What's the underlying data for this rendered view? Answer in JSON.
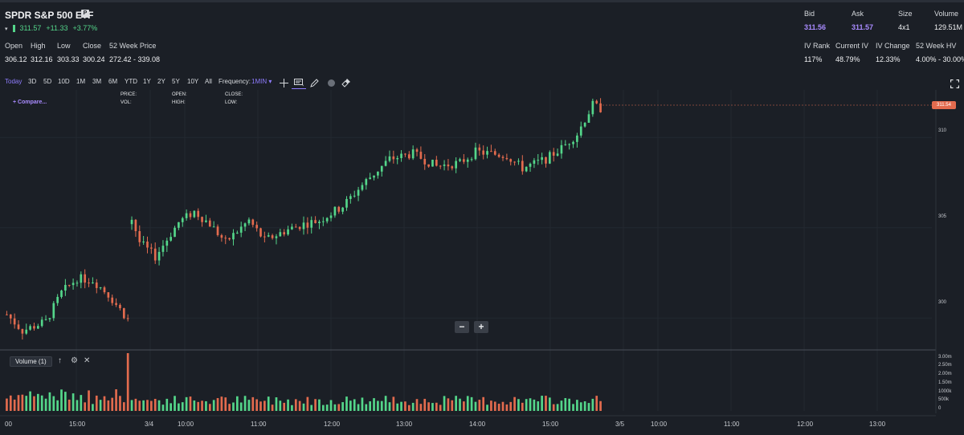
{
  "ticker": {
    "title": "SPDR S&P 500 ETF",
    "badge": "P",
    "caret": "▾",
    "last": "311.57",
    "change": "+11.33",
    "change_pct": "+3.77%"
  },
  "ohlc": {
    "headers": [
      "Open",
      "High",
      "Low",
      "Close",
      "52 Week Price"
    ],
    "values": [
      "306.12",
      "312.16",
      "303.33",
      "300.24",
      "272.42 - 339.08"
    ]
  },
  "quote": {
    "headers": [
      "Bid",
      "Ask",
      "Size",
      "Volume"
    ],
    "values": [
      "311.56",
      "311.57",
      "4x1",
      "129.51M"
    ]
  },
  "iv": {
    "headers": [
      "IV Rank",
      "Current IV",
      "IV Change",
      "52 Week HV"
    ],
    "values": [
      "117%",
      "48.79%",
      "12.33%",
      "4.00% - 30.00%"
    ]
  },
  "toolbar": {
    "ranges": [
      "Today",
      "3D",
      "5D",
      "10D",
      "1M",
      "3M",
      "6M",
      "YTD",
      "1Y",
      "2Y",
      "5Y",
      "10Y",
      "All"
    ],
    "active_range": "Today",
    "frequency_label": "Frequency:",
    "frequency_value": "1MIN",
    "tool_icons": [
      "crosshair-icon",
      "comment-icon",
      "pencil-icon",
      "circle-icon",
      "clear-drawings-icon"
    ]
  },
  "overlay": {
    "compare": "+ Compare...",
    "price_label": "PRICE:",
    "vol_label": "VOL:",
    "open_label": "OPEN:",
    "high_label": "HIGH:",
    "close_label": "CLOSE:",
    "low_label": "LOW:"
  },
  "zoom": {
    "minus": "−",
    "plus": "+"
  },
  "volume_panel": {
    "label": "Volume (1)",
    "up_icon": "↑",
    "gear_icon": "⚙",
    "close_icon": "✕"
  },
  "price_axis": {
    "labels": [
      "310",
      "305",
      "300"
    ],
    "current_tag": "311.54"
  },
  "volume_axis": {
    "labels": [
      "3.00m",
      "2.50m",
      "2.00m",
      "1.50m",
      "1000k",
      "500k",
      "0"
    ]
  },
  "time_axis": {
    "labels": [
      "00",
      "15:00",
      "3/4",
      "10:00",
      "11:00",
      "12:00",
      "13:00",
      "14:00",
      "15:00",
      "3/5",
      "10:00",
      "11:00",
      "12:00",
      "13:00"
    ]
  },
  "colors": {
    "up": "#54d68a",
    "down": "#e36b4e",
    "accent": "#8f7cff",
    "background": "#1b1f26"
  },
  "chart_data": {
    "type": "candlestick",
    "ylim": [
      298.5,
      312.5
    ],
    "volume_ylim": [
      0,
      3000000
    ],
    "anchors": [
      [
        0,
        300.2
      ],
      [
        4,
        299.3
      ],
      [
        10,
        299.8
      ],
      [
        14,
        301.4
      ],
      [
        18,
        302.2
      ],
      [
        22,
        302.1
      ],
      [
        26,
        301.3
      ],
      [
        30,
        300.2
      ],
      [
        31,
        300.2
      ],
      [
        32,
        305.5
      ],
      [
        34,
        304.2
      ],
      [
        38,
        303.4
      ],
      [
        44,
        305.3
      ],
      [
        48,
        305.9
      ],
      [
        52,
        305.2
      ],
      [
        56,
        304.2
      ],
      [
        62,
        305.4
      ],
      [
        66,
        304.3
      ],
      [
        72,
        304.9
      ],
      [
        76,
        305.2
      ],
      [
        80,
        305.4
      ],
      [
        86,
        306.2
      ],
      [
        92,
        307.6
      ],
      [
        98,
        308.8
      ],
      [
        104,
        309.1
      ],
      [
        110,
        308.4
      ],
      [
        116,
        308.6
      ],
      [
        120,
        309.2
      ],
      [
        128,
        309.0
      ],
      [
        132,
        308.3
      ],
      [
        138,
        308.8
      ],
      [
        142,
        309.4
      ],
      [
        146,
        310.2
      ],
      [
        150,
        311.8
      ],
      [
        152,
        311.6
      ]
    ],
    "volume_spike_index": 31,
    "volume_spike_value": 3000000
  }
}
